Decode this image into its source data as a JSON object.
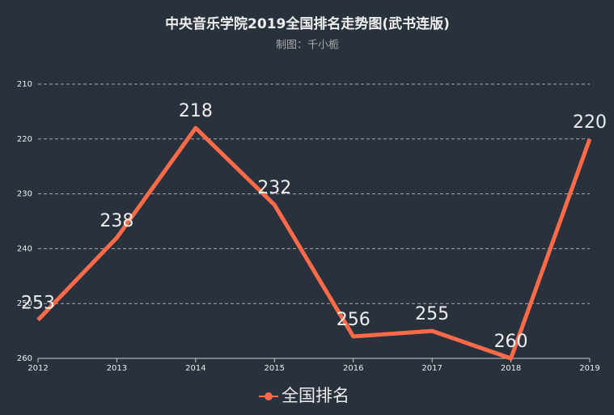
{
  "chart_data": {
    "type": "line",
    "title": "中央音乐学院2019全国排名走势图(武书连版)",
    "subtitle": "制图：千小栀",
    "categories": [
      "2012",
      "2013",
      "2014",
      "2015",
      "2016",
      "2017",
      "2018",
      "2019"
    ],
    "series": [
      {
        "name": "全国排名",
        "color": "#ff6a48",
        "values": [
          253,
          238,
          218,
          232,
          256,
          255,
          260,
          220
        ]
      }
    ],
    "ylim": [
      210,
      260
    ],
    "yticks": [
      210,
      220,
      230,
      240,
      250,
      260
    ],
    "y_inverse": true,
    "grid": true
  }
}
